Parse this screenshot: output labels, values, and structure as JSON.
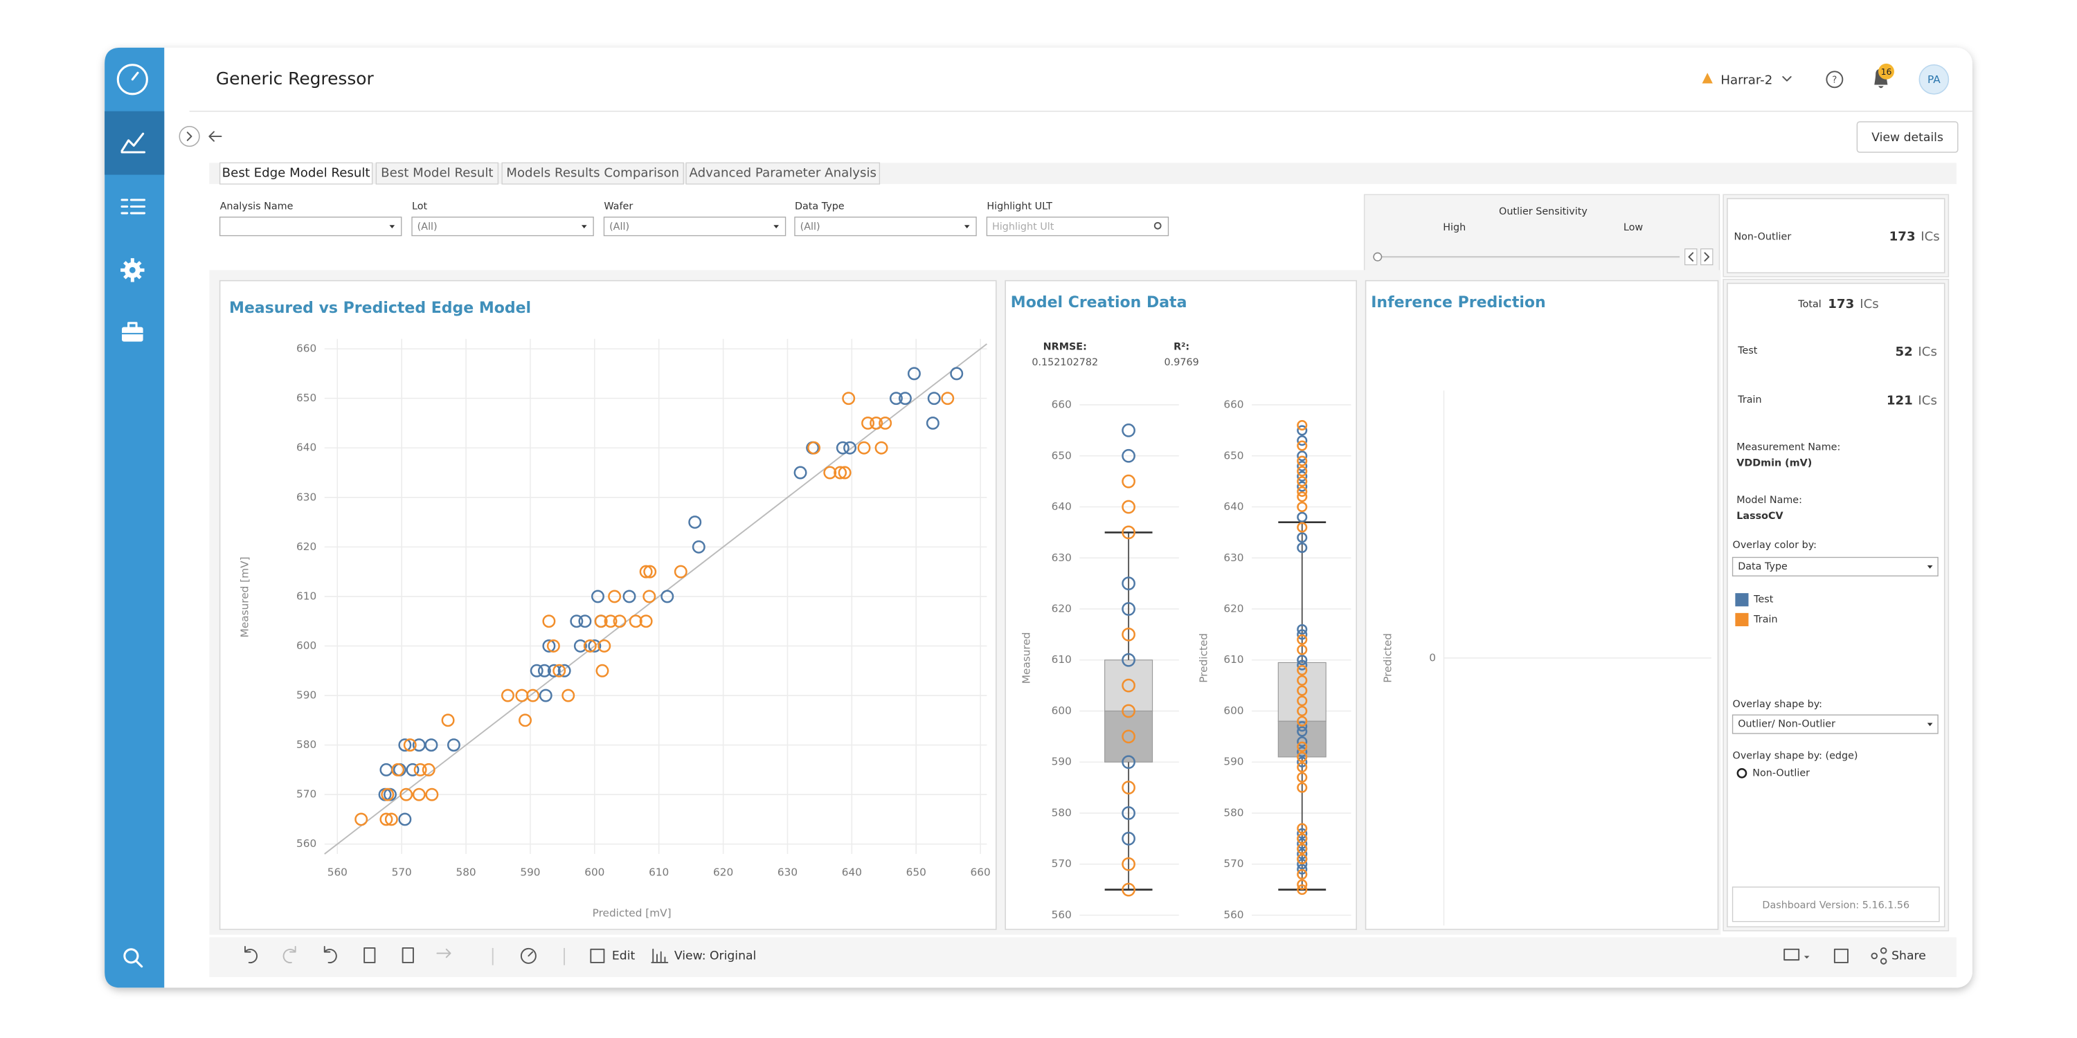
{
  "header": {
    "title": "Generic Regressor",
    "site": "Harrar-2",
    "notifications": "16",
    "user": "PA",
    "view_details": "View details"
  },
  "tabs": [
    "Best Edge Model Result",
    "Best Model Result",
    "Models Results Comparison",
    "Advanced Parameter Analysis"
  ],
  "filters": [
    {
      "label": "Analysis Name"
    },
    {
      "label": "Lot",
      "value": "(All)"
    },
    {
      "label": "Wafer",
      "value": "(All)"
    },
    {
      "label": "Data Type",
      "value": "(All)"
    },
    {
      "label": "Highlight ULT",
      "placeholder": "Highlight Ult"
    }
  ],
  "outlier_sensitivity": {
    "title": "Outlier Sensitivity",
    "high": "High",
    "low": "Low"
  },
  "summary": {
    "non_outlier": {
      "label": "Non-Outlier",
      "count": 173,
      "unit": "ICs"
    },
    "total": {
      "label": "Total",
      "count": 173,
      "unit": "ICs"
    },
    "counts": [
      {
        "label": "Test",
        "count": 52,
        "unit": "ICs"
      },
      {
        "label": "Train",
        "count": 121,
        "unit": "ICs"
      }
    ],
    "measurement_name": {
      "label": "Measurement Name:",
      "value": "VDDmin (mV)"
    },
    "model_name": {
      "label": "Model Name:",
      "value": "LassoCV"
    },
    "overlay_color": {
      "label": "Overlay color by:",
      "value": "Data Type"
    },
    "overlay_shape": {
      "label": "Overlay shape by:",
      "value": "Outlier/ Non-Outlier"
    },
    "overlay_shape_edge": {
      "label": "Overlay shape by: (edge)",
      "value": "Non-Outlier"
    },
    "version": "Dashboard Version: 5.16.1.56"
  },
  "toolbar": {
    "edit": "Edit",
    "view": "View: Original",
    "share": "Share"
  },
  "chart_data": [
    {
      "type": "scatter",
      "title": "Measured vs Predicted Edge Model",
      "x_label": "Predicted [mV]",
      "y_label": "Measured [mV]",
      "xlim": [
        558,
        661
      ],
      "ylim": [
        558,
        662
      ],
      "xticks": [
        560,
        570,
        580,
        590,
        600,
        610,
        620,
        630,
        640,
        650,
        660
      ],
      "yticks": [
        560,
        570,
        580,
        590,
        600,
        610,
        620,
        630,
        640,
        650,
        660
      ],
      "grid": true,
      "diagonal": true,
      "series": [
        {
          "name": "Test",
          "color": "#4e79a7",
          "x": [
            649.7,
            656.3,
            646.9,
            648.3,
            652.8,
            652.6,
            633.9,
            638.6,
            639.7,
            632.0,
            615.6,
            616.2,
            600.5,
            605.4,
            611.3,
            597.2,
            598.5,
            601.0,
            592.9,
            597.8,
            600.0,
            591.0,
            592.2,
            593.7,
            595.3,
            592.4,
            578.1,
            570.5,
            572.7,
            574.6,
            567.6,
            569.7,
            571.7,
            567.4,
            568.2,
            570.5
          ],
          "y": [
            655,
            655,
            650,
            650,
            650,
            645,
            640,
            640,
            640,
            635,
            625,
            620,
            610,
            610,
            610,
            605,
            605,
            605,
            600,
            600,
            600,
            595,
            595,
            595,
            595,
            590,
            580,
            580,
            580,
            580,
            575,
            575,
            575,
            570,
            570,
            565
          ]
        },
        {
          "name": "Train",
          "color": "#f28e2b",
          "x": [
            639.5,
            654.9,
            642.5,
            643.8,
            645.2,
            634.1,
            641.9,
            644.6,
            636.6,
            638.2,
            638.9,
            608.0,
            608.6,
            613.4,
            603.1,
            608.5,
            592.9,
            601.0,
            602.5,
            603.9,
            606.4,
            608.0,
            593.6,
            599.3,
            601.5,
            594.5,
            601.2,
            586.5,
            588.7,
            590.4,
            595.9,
            577.2,
            589.2,
            571.3,
            569.4,
            572.9,
            574.2,
            567.8,
            570.7,
            572.7,
            574.7,
            563.7,
            567.6,
            568.4
          ],
          "y": [
            650,
            650,
            645,
            645,
            645,
            640,
            640,
            640,
            635,
            635,
            635,
            615,
            615,
            615,
            610,
            610,
            605,
            605,
            605,
            605,
            605,
            605,
            600,
            600,
            600,
            595,
            595,
            590,
            590,
            590,
            590,
            585,
            585,
            580,
            575,
            575,
            575,
            570,
            570,
            570,
            570,
            565,
            565,
            565
          ]
        }
      ]
    },
    {
      "type": "box",
      "title": "Model Creation Data",
      "stats": [
        {
          "label": "NRMSE:",
          "value": 0.152102782
        },
        {
          "label": "R²:",
          "value": 0.9769
        }
      ],
      "ylim": [
        558.5,
        661.5
      ],
      "yticks": [
        560,
        570,
        580,
        590,
        600,
        610,
        620,
        630,
        640,
        650,
        660
      ],
      "grid": true,
      "subplots": [
        {
          "y_label": "Measured",
          "whisker_low": 565,
          "q1": 590,
          "median": 600,
          "q3": 610,
          "whisker_high": 635,
          "series": [
            {
              "color": "#4e79a7",
              "values": [
                655,
                650,
                625,
                620,
                610,
                590,
                580,
                575
              ]
            },
            {
              "color": "#f28e2b",
              "values": [
                645,
                640,
                635,
                615,
                605,
                600,
                595,
                585,
                570,
                565
              ]
            }
          ]
        },
        {
          "y_label": "Predicted",
          "whisker_low": 565,
          "q1": 591,
          "median": 598,
          "q3": 609.5,
          "whisker_high": 637,
          "series": [
            {
              "color": "#4e79a7",
              "values": [
                655,
                653,
                650,
                648,
                646,
                644,
                638,
                634,
                632,
                616,
                615,
                610,
                609,
                597,
                596,
                594,
                592,
                590,
                576,
                575,
                574,
                573,
                572,
                571,
                570,
                569
              ]
            },
            {
              "color": "#f28e2b",
              "values": [
                656,
                652,
                649,
                647,
                645,
                643,
                642,
                640,
                636,
                614,
                612,
                608,
                606,
                604,
                602,
                600,
                598,
                593,
                591,
                589,
                587,
                585,
                577,
                575,
                573,
                571,
                568,
                566,
                565
              ]
            }
          ]
        }
      ]
    },
    {
      "type": "scatter",
      "title": "Inference Prediction",
      "y_label": "Predicted",
      "ylim": [
        -1,
        1
      ],
      "yticks": [
        0
      ],
      "grid": true,
      "series": []
    }
  ]
}
